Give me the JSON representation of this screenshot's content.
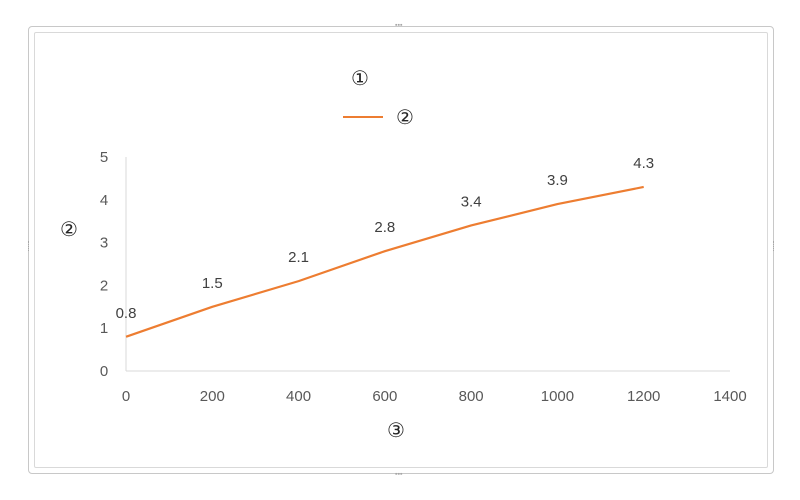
{
  "chart_data": {
    "type": "line",
    "title": "①",
    "xlabel": "③",
    "ylabel": "②",
    "legend_position": "top",
    "grid": false,
    "x": [
      0,
      200,
      400,
      600,
      800,
      1000,
      1200
    ],
    "series": [
      {
        "name": "②",
        "values": [
          0.8,
          1.5,
          2.1,
          2.8,
          3.4,
          3.9,
          4.3
        ],
        "color": "#ed7d31"
      }
    ],
    "data_labels": [
      "0.8",
      "1.5",
      "2.1",
      "2.8",
      "3.4",
      "3.9",
      "4.3"
    ],
    "xlim": [
      0,
      1400
    ],
    "ylim": [
      0,
      5
    ],
    "x_ticks": [
      0,
      200,
      400,
      600,
      800,
      1000,
      1200,
      1400
    ],
    "y_ticks": [
      0,
      1,
      2,
      3,
      4,
      5
    ]
  }
}
